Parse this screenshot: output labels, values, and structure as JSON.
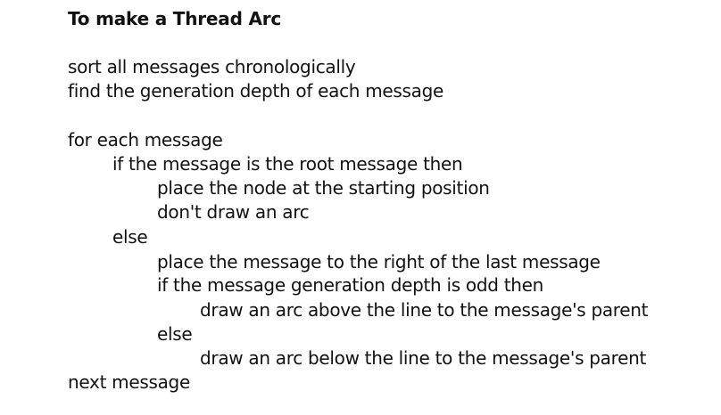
{
  "title": "To make a Thread Arc",
  "lines": [
    "sort all messages chronologically",
    "find the generation depth of each message",
    "for each message",
    "if the message is the root message then",
    "place the node at the starting position",
    "don't draw an arc",
    "else",
    "place the message to the right of the last message",
    "if the message generation depth is odd then",
    "draw an arc above the line to the message's parent",
    "else",
    "draw an arc below the line to the message's parent",
    "next message"
  ]
}
